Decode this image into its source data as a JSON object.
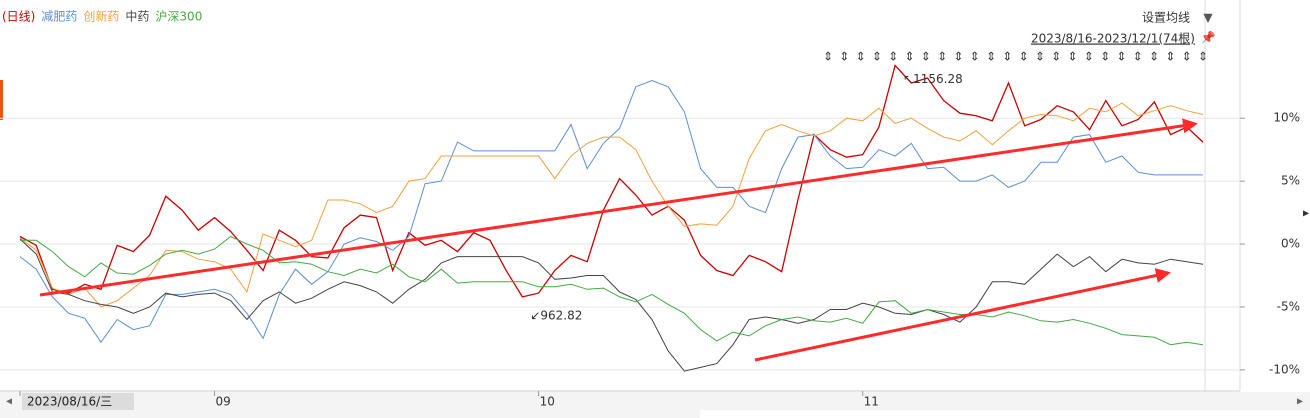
{
  "chart_data": {
    "type": "line",
    "legend_prefix": null,
    "top_right_button": "设置均线",
    "range_label": "2023/8/16-2023/12/1(74根)",
    "annotations": [
      {
        "text": "1156.28",
        "index": 54
      },
      {
        "text": "962.82",
        "index": 31
      }
    ],
    "xlim": [
      0,
      73
    ],
    "xticks": [
      {
        "value": 0,
        "label": "2023/08/16/三"
      },
      {
        "value": 12,
        "label": "09"
      },
      {
        "value": 32,
        "label": "10"
      },
      {
        "value": 52,
        "label": "11"
      }
    ],
    "ylim": [
      -11.6,
      19
    ],
    "yticks": [
      {
        "value": 10,
        "label": "10%"
      },
      {
        "value": 5,
        "label": "5%"
      },
      {
        "value": 0,
        "label": "0%"
      },
      {
        "value": -5,
        "label": "-5%"
      },
      {
        "value": -10,
        "label": "-10%"
      }
    ],
    "grid": true,
    "series": [
      {
        "name": "(日线)",
        "color": "#cc0000",
        "values": [
          0.6,
          -0.1,
          -3.6,
          -3.9,
          -3.2,
          -3.6,
          -0.1,
          -0.6,
          0.7,
          3.8,
          2.7,
          1.1,
          2.1,
          1.0,
          -0.5,
          -2.1,
          1.1,
          0.3,
          -1.0,
          -1.1,
          1.3,
          2.3,
          2.1,
          -2.1,
          0.9,
          -0.1,
          0.3,
          -0.6,
          0.9,
          0.3,
          -2.1,
          -4.2,
          -3.9,
          -2.1,
          -0.9,
          -1.4,
          2.7,
          5.2,
          3.9,
          2.3,
          3.0,
          1.9,
          -0.9,
          -2.1,
          -2.5,
          -0.9,
          -1.4,
          -2.2,
          3.5,
          8.7,
          7.5,
          6.9,
          7.1,
          9.3,
          14.2,
          12.8,
          13.2,
          11.4,
          10.4,
          10.2,
          9.8,
          12.8,
          9.4,
          9.9,
          11.0,
          10.5,
          9.1,
          11.4,
          9.4,
          9.9,
          11.3,
          8.7,
          9.3,
          8.1
        ]
      },
      {
        "name": "减肥药",
        "color": "#5b8fd6",
        "values": [
          -1.0,
          -2.0,
          -4.2,
          -5.5,
          -5.9,
          -7.8,
          -6.0,
          -6.8,
          -6.5,
          -4.0,
          -4.0,
          -3.8,
          -3.6,
          -4.0,
          -5.5,
          -7.5,
          -4.0,
          -2.0,
          -3.2,
          -2.2,
          0.0,
          0.5,
          0.2,
          -0.5,
          0.6,
          4.8,
          5.0,
          8.1,
          7.4,
          7.4,
          7.4,
          7.4,
          7.4,
          7.4,
          9.5,
          6.0,
          8.0,
          9.2,
          12.5,
          13.0,
          12.5,
          10.5,
          6.0,
          4.5,
          4.5,
          3.0,
          2.5,
          6.0,
          8.5,
          8.7,
          7.0,
          6.0,
          6.1,
          7.5,
          7.0,
          8.0,
          6.0,
          6.1,
          5.0,
          5.0,
          5.5,
          4.5,
          5.0,
          6.5,
          6.5,
          8.5,
          8.7,
          6.5,
          7.0,
          5.7,
          5.5,
          5.5,
          5.5,
          5.5
        ]
      },
      {
        "name": "创新药",
        "color": "#f0a040",
        "values": [
          0.5,
          -0.5,
          -3.5,
          -4.0,
          -3.5,
          -5.0,
          -4.5,
          -3.5,
          -2.5,
          -0.5,
          -0.6,
          -1.2,
          -1.4,
          -2.0,
          -3.8,
          0.8,
          0.3,
          -0.2,
          0.3,
          3.5,
          3.5,
          3.2,
          2.5,
          3.0,
          5.0,
          5.2,
          7.0,
          7.0,
          7.0,
          7.0,
          7.0,
          7.0,
          7.0,
          5.2,
          7.0,
          8.0,
          8.5,
          8.5,
          7.5,
          5.0,
          3.0,
          1.4,
          1.6,
          1.5,
          3.0,
          6.8,
          9.0,
          9.5,
          9.0,
          8.6,
          9.0,
          10.0,
          9.8,
          10.8,
          9.6,
          10.0,
          9.2,
          8.5,
          8.2,
          9.0,
          7.9,
          9.0,
          10.0,
          10.3,
          10.2,
          9.8,
          10.8,
          10.5,
          11.2,
          10.2,
          10.6,
          11.0,
          10.6,
          10.3
        ]
      },
      {
        "name": "中药",
        "color": "#444444",
        "values": [
          0.4,
          -0.8,
          -3.8,
          -4.0,
          -4.5,
          -4.8,
          -5.0,
          -5.5,
          -5.0,
          -3.9,
          -4.2,
          -4.0,
          -3.9,
          -4.5,
          -6.0,
          -4.5,
          -3.8,
          -4.7,
          -4.3,
          -3.6,
          -3.0,
          -3.3,
          -3.8,
          -4.7,
          -3.6,
          -2.8,
          -1.5,
          -1.0,
          -1.0,
          -1.0,
          -1.0,
          -1.0,
          -1.5,
          -2.8,
          -2.7,
          -2.5,
          -2.5,
          -3.8,
          -4.4,
          -6.0,
          -8.5,
          -10.1,
          -9.8,
          -9.5,
          -8.0,
          -6.0,
          -5.8,
          -6.0,
          -6.3,
          -6.0,
          -5.2,
          -5.2,
          -4.7,
          -5.0,
          -5.5,
          -5.6,
          -5.2,
          -5.6,
          -6.2,
          -5.0,
          -3.0,
          -3.0,
          -3.2,
          -2.0,
          -0.8,
          -1.8,
          -1.0,
          -2.2,
          -1.2,
          -1.5,
          -1.6,
          -1.2,
          -1.4,
          -1.6
        ]
      },
      {
        "name": "沪深300",
        "color": "#44aa44",
        "values": [
          0.3,
          0.3,
          -0.6,
          -1.8,
          -2.6,
          -1.5,
          -2.3,
          -2.4,
          -1.7,
          -0.8,
          -0.5,
          -0.8,
          -0.4,
          0.6,
          0.0,
          -0.5,
          -1.5,
          -1.4,
          -1.6,
          -2.2,
          -2.5,
          -2.0,
          -2.3,
          -1.6,
          -2.6,
          -3.0,
          -2.0,
          -3.1,
          -3.0,
          -3.0,
          -3.0,
          -3.0,
          -3.4,
          -3.4,
          -3.2,
          -3.6,
          -3.5,
          -4.2,
          -4.6,
          -4.0,
          -4.8,
          -5.5,
          -6.8,
          -7.7,
          -7.0,
          -7.3,
          -6.5,
          -6.0,
          -5.8,
          -6.1,
          -6.2,
          -5.9,
          -6.3,
          -4.6,
          -4.5,
          -5.5,
          -5.2,
          -5.4,
          -5.6,
          -5.6,
          -5.8,
          -5.4,
          -5.7,
          -6.1,
          -6.2,
          -6.0,
          -6.3,
          -6.7,
          -7.2,
          -7.3,
          -7.4,
          -8.0,
          -7.8,
          -8.0
        ]
      }
    ]
  }
}
